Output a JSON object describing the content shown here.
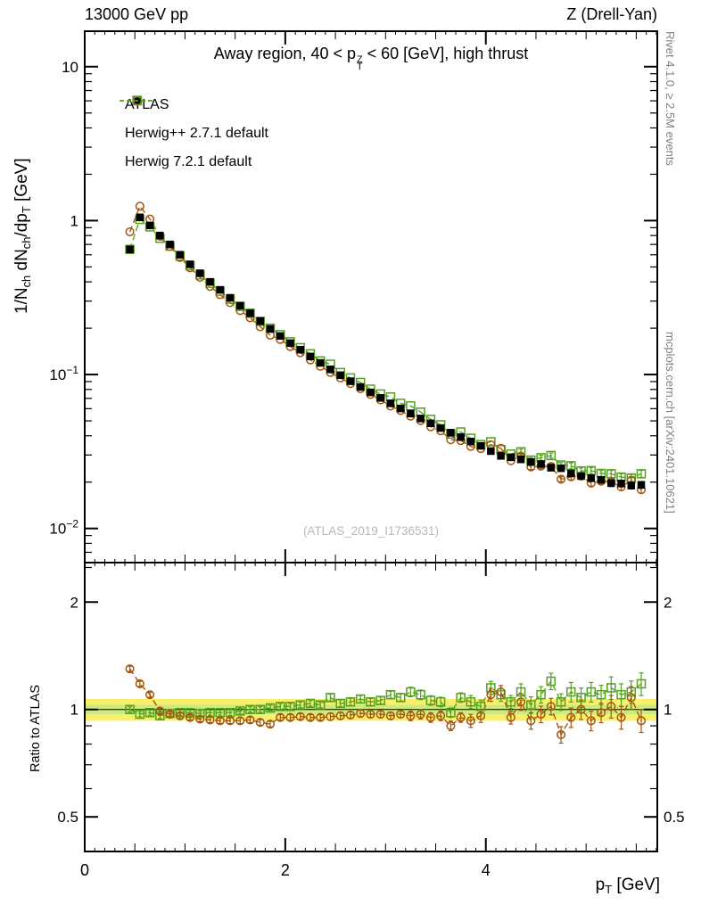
{
  "header": {
    "left": "13000 GeV pp",
    "right": "Z (Drell-Yan)"
  },
  "labels": {
    "title": {
      "p1": "Away region, 40 < p",
      "sup": "Z",
      "sub": "T",
      "p2": " < 60 [GeV], high thrust"
    },
    "main_ylabel": {
      "p1": "1/N",
      "s1": "ch",
      "p2": " dN",
      "s2": "ch",
      "p3": "/dp",
      "s3": "T",
      "p4": " [GeV]"
    },
    "ratio_ylabel": "Ratio to ATLAS",
    "xlabel": {
      "p1": "p",
      "s1": "T",
      "p2": " [GeV]"
    }
  },
  "watermark": "(ATLAS_2019_I1736531)",
  "side_notes": {
    "top": "Rivet 4.1.0, ≥ 2.5M events",
    "bottom": "mcplots.cern.ch [arXiv:2401.10621]"
  },
  "legend": [
    {
      "label": "ATLAS",
      "marker": "filled-square",
      "color": "#000000"
    },
    {
      "label": "Herwig++ 2.7.1 default",
      "marker": "open-circle-dashed",
      "color": "#a5560e"
    },
    {
      "label": "Herwig 7.2.1 default",
      "marker": "open-square-dashed",
      "color": "#55a021"
    }
  ],
  "axes": {
    "x_ticks": [
      {
        "value": 0,
        "label": "0"
      },
      {
        "value": 2,
        "label": "2"
      },
      {
        "value": 4,
        "label": "4"
      }
    ],
    "main_y_ticks": [
      {
        "value": 10,
        "mant": "10",
        "exp": ""
      },
      {
        "value": 1,
        "mant": "1",
        "exp": ""
      },
      {
        "value": 0.1,
        "mant": "10",
        "exp": "−1"
      },
      {
        "value": 0.01,
        "mant": "10",
        "exp": "−2"
      }
    ],
    "ratio_y_ticks": [
      {
        "value": 2,
        "label": "2"
      },
      {
        "value": 1,
        "label": "1"
      },
      {
        "value": 0.5,
        "label": "0.5"
      }
    ],
    "ratio_minor_ticks": [
      0.4,
      0.6,
      0.7,
      0.8,
      0.9,
      2.5
    ]
  },
  "chart_data": {
    "type": "scatter",
    "title": "Away region, 40 < pT(Z) < 60 [GeV], high thrust",
    "xlabel": "pT [GeV]",
    "ylabel": "1/Nch dNch/dpT [GeV]",
    "ratio_label": "Ratio to ATLAS",
    "xlim": [
      0,
      5.71
    ],
    "main_ylim": [
      0.006,
      17
    ],
    "ratio_ylim": [
      0.4,
      2.58
    ],
    "x": [
      0.45,
      0.55,
      0.65,
      0.75,
      0.85,
      0.95,
      1.05,
      1.15,
      1.25,
      1.35,
      1.45,
      1.55,
      1.65,
      1.75,
      1.85,
      1.95,
      2.05,
      2.15,
      2.25,
      2.35,
      2.45,
      2.55,
      2.65,
      2.75,
      2.85,
      2.95,
      3.05,
      3.15,
      3.25,
      3.35,
      3.45,
      3.55,
      3.65,
      3.75,
      3.85,
      3.95,
      4.05,
      4.15,
      4.25,
      4.35,
      4.45,
      4.55,
      4.65,
      4.75,
      4.85,
      4.95,
      5.05,
      5.15,
      5.25,
      5.35,
      5.45,
      5.55
    ],
    "series": [
      {
        "name": "ATLAS",
        "values": [
          0.65,
          1.05,
          0.93,
          0.8,
          0.7,
          0.6,
          0.52,
          0.455,
          0.4,
          0.355,
          0.315,
          0.28,
          0.25,
          0.222,
          0.198,
          0.178,
          0.16,
          0.145,
          0.131,
          0.119,
          0.108,
          0.099,
          0.0905,
          0.083,
          0.0765,
          0.0705,
          0.065,
          0.0602,
          0.0558,
          0.0518,
          0.0482,
          0.0449,
          0.0419,
          0.0392,
          0.0367,
          0.0344,
          0.0318,
          0.0296,
          0.029,
          0.0281,
          0.027,
          0.0262,
          0.0248,
          0.0246,
          0.0228,
          0.0219,
          0.0212,
          0.0207,
          0.0197,
          0.0196,
          0.019,
          0.0192
        ],
        "rel_err": [
          0.008,
          0.008,
          0.008,
          0.008,
          0.008,
          0.008,
          0.008,
          0.008,
          0.008,
          0.008,
          0.009,
          0.009,
          0.009,
          0.009,
          0.009,
          0.009,
          0.009,
          0.009,
          0.009,
          0.009,
          0.011,
          0.011,
          0.011,
          0.011,
          0.011,
          0.011,
          0.011,
          0.011,
          0.014,
          0.014,
          0.014,
          0.014,
          0.014,
          0.014,
          0.018,
          0.018,
          0.018,
          0.018,
          0.018,
          0.023,
          0.023,
          0.023,
          0.023,
          0.023,
          0.04,
          0.04,
          0.04,
          0.04,
          0.05,
          0.05,
          0.05,
          0.05
        ]
      },
      {
        "name": "Herwig++ 2.7.1 default",
        "ratio_to_atlas": [
          1.3,
          1.18,
          1.1,
          0.99,
          0.97,
          0.96,
          0.95,
          0.94,
          0.935,
          0.93,
          0.93,
          0.93,
          0.935,
          0.92,
          0.91,
          0.95,
          0.95,
          0.955,
          0.95,
          0.95,
          0.955,
          0.96,
          0.965,
          0.975,
          0.97,
          0.97,
          0.96,
          0.97,
          0.96,
          0.97,
          0.95,
          0.96,
          0.9,
          0.95,
          0.93,
          0.96,
          1.1,
          1.12,
          0.95,
          1.05,
          0.93,
          0.97,
          1.02,
          0.85,
          0.95,
          1.0,
          0.93,
          0.98,
          1.02,
          0.95,
          1.08,
          0.93
        ],
        "rel_err": [
          0.012,
          0.012,
          0.012,
          0.012,
          0.012,
          0.012,
          0.012,
          0.012,
          0.012,
          0.012,
          0.013,
          0.013,
          0.013,
          0.013,
          0.013,
          0.013,
          0.013,
          0.013,
          0.013,
          0.013,
          0.016,
          0.016,
          0.016,
          0.016,
          0.016,
          0.016,
          0.016,
          0.016,
          0.022,
          0.022,
          0.022,
          0.022,
          0.022,
          0.022,
          0.03,
          0.03,
          0.03,
          0.03,
          0.03,
          0.038,
          0.038,
          0.038,
          0.038,
          0.038,
          0.045,
          0.045,
          0.045,
          0.045,
          0.052,
          0.052,
          0.052,
          0.052
        ]
      },
      {
        "name": "Herwig 7.2.1 default",
        "ratio_to_atlas": [
          1.0,
          0.97,
          0.98,
          0.96,
          0.975,
          0.98,
          0.98,
          0.975,
          0.98,
          0.98,
          0.98,
          0.99,
          1.0,
          1.0,
          1.01,
          1.02,
          1.02,
          1.03,
          1.04,
          1.03,
          1.08,
          1.04,
          1.05,
          1.07,
          1.05,
          1.06,
          1.1,
          1.08,
          1.12,
          1.1,
          1.06,
          1.05,
          0.98,
          1.08,
          1.05,
          1.02,
          1.15,
          1.1,
          1.05,
          1.12,
          1.03,
          1.1,
          1.2,
          1.05,
          1.12,
          1.08,
          1.12,
          1.1,
          1.15,
          1.1,
          1.12,
          1.18
        ],
        "rel_err": [
          0.012,
          0.012,
          0.012,
          0.012,
          0.012,
          0.012,
          0.012,
          0.012,
          0.012,
          0.012,
          0.013,
          0.013,
          0.013,
          0.013,
          0.013,
          0.013,
          0.013,
          0.013,
          0.013,
          0.013,
          0.016,
          0.016,
          0.016,
          0.016,
          0.016,
          0.016,
          0.016,
          0.016,
          0.022,
          0.022,
          0.022,
          0.022,
          0.022,
          0.022,
          0.03,
          0.03,
          0.03,
          0.03,
          0.03,
          0.038,
          0.038,
          0.038,
          0.038,
          0.038,
          0.045,
          0.045,
          0.045,
          0.045,
          0.052,
          0.052,
          0.052,
          0.052
        ]
      }
    ],
    "band": {
      "outer": [
        0.93,
        1.07
      ],
      "inner": [
        0.97,
        1.03
      ],
      "outer_color": "#f8ef6b",
      "inner_color": "#cdea80"
    },
    "grid": false,
    "legend_position": "top-left"
  }
}
